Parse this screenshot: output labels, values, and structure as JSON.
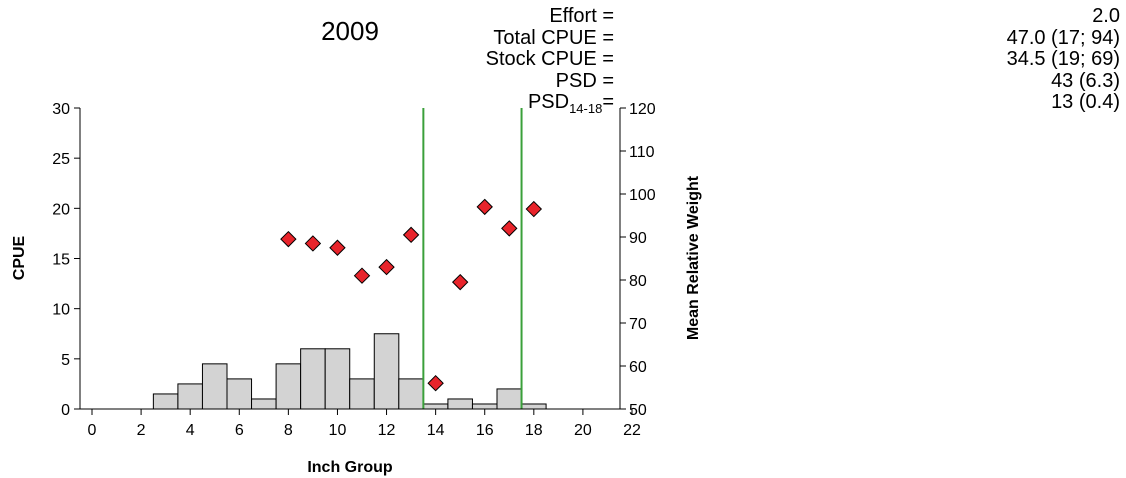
{
  "chart_data": {
    "type": "bar",
    "title": "2009",
    "xlabel": "Inch Group",
    "ylabel": "CPUE",
    "y2label": "Mean Relative Weight",
    "xlim": [
      0,
      22
    ],
    "ylim": [
      0,
      30
    ],
    "y2lim": [
      50,
      120
    ],
    "xticks": [
      "0",
      "2",
      "4",
      "6",
      "8",
      "10",
      "12",
      "14",
      "16",
      "18",
      "20",
      "22"
    ],
    "yticks": [
      "0",
      "5",
      "10",
      "15",
      "20",
      "25",
      "30"
    ],
    "y2ticks": [
      "50",
      "60",
      "70",
      "80",
      "90",
      "100",
      "110",
      "120"
    ],
    "bar_color": "#d3d3d3",
    "cpue_bars": {
      "x": [
        3,
        4,
        5,
        6,
        7,
        8,
        9,
        10,
        11,
        12,
        13,
        14,
        15,
        16,
        17,
        18
      ],
      "values": [
        1.5,
        2.5,
        4.5,
        3.0,
        1.0,
        4.5,
        6.0,
        6.0,
        3.0,
        7.5,
        3.0,
        0.5,
        1.0,
        0.5,
        2.0,
        0.5
      ]
    },
    "relative_weight": {
      "marker": "diamond",
      "color": "#e8242b",
      "x": [
        8,
        9,
        10,
        11,
        12,
        13,
        14,
        15,
        16,
        17,
        18
      ],
      "values": [
        89.5,
        88.5,
        87.5,
        81,
        83,
        90.5,
        56,
        79.5,
        97,
        92,
        96.5
      ]
    },
    "reference_lines": {
      "color": "#3aa03a",
      "x": [
        13.5,
        17.5
      ]
    }
  },
  "stats": [
    {
      "label": "Effort =",
      "value": "2.0"
    },
    {
      "label": "Total CPUE =",
      "value": "47.0 (17; 94)"
    },
    {
      "label": "Stock CPUE =",
      "value": "34.5 (19; 69)"
    },
    {
      "label": "PSD =",
      "value": "43 (6.3)"
    },
    {
      "label_main": "PSD",
      "label_sub": "14-18",
      "label_tail": "=",
      "value": "13 (0.4)"
    }
  ]
}
